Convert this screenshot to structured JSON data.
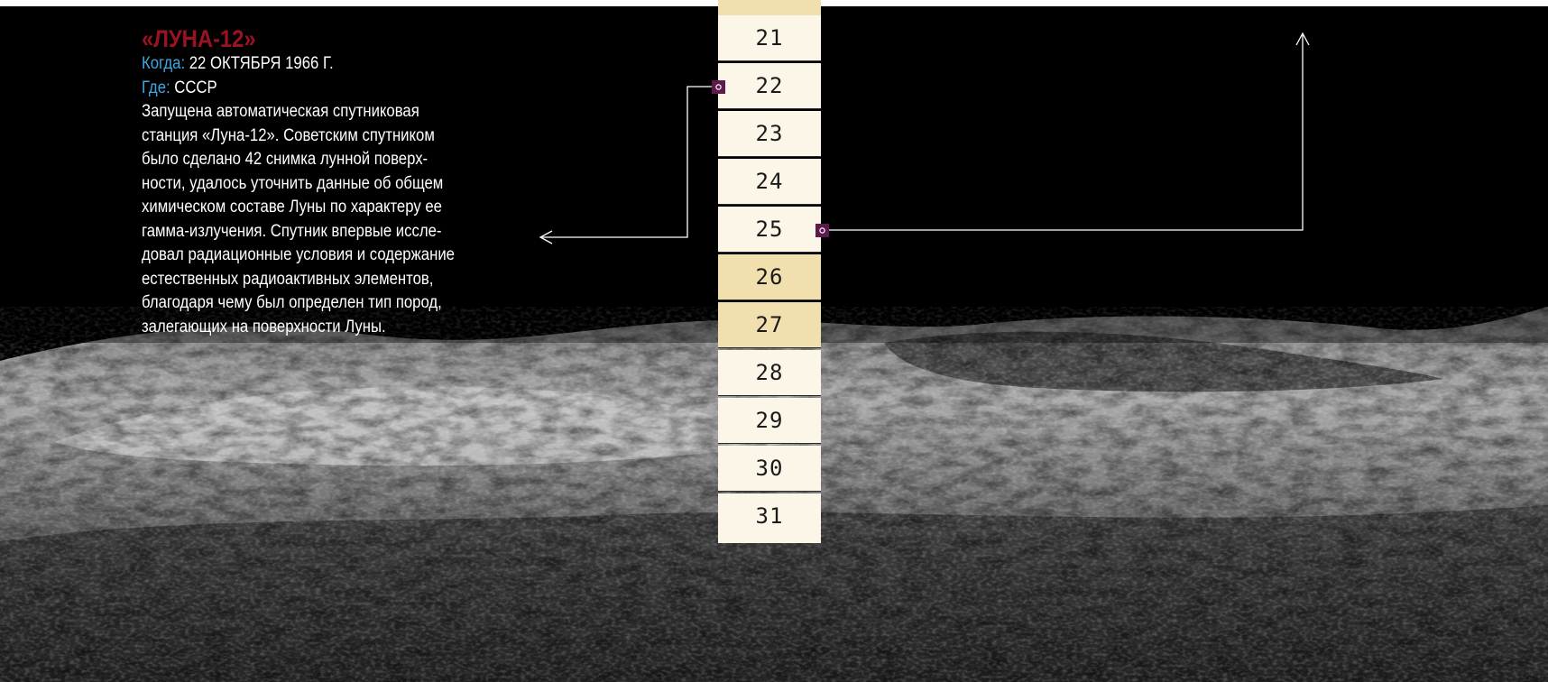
{
  "article": {
    "headline": "«ЛУНА-12»",
    "when_label": "Когда:",
    "when_value": "22 ОКТЯБРЯ 1966 Г.",
    "where_label": "Где:",
    "where_value": "СССР",
    "body_lines": [
      "Запущена автоматическая спутниковая",
      "станция «Луна-12». Советским спутником",
      "было сделано 42 снимка лунной поверх-",
      "ности, удалось уточнить данные об общем",
      "химическом составе Луны по характеру ее",
      "гамма-излучения. Спутник впервые иссле-",
      "довал радиационные условия и содержание",
      "естественных радиоактивных элементов,",
      "благодаря чему был определен тип пород,",
      "залегающих на поверхности Луны."
    ]
  },
  "calendar": {
    "days": [
      {
        "label": "21",
        "highlight": false
      },
      {
        "label": "22",
        "highlight": false
      },
      {
        "label": "23",
        "highlight": false
      },
      {
        "label": "24",
        "highlight": false
      },
      {
        "label": "25",
        "highlight": false
      },
      {
        "label": "26",
        "highlight": true
      },
      {
        "label": "27",
        "highlight": true
      },
      {
        "label": "28",
        "highlight": false
      },
      {
        "label": "29",
        "highlight": false
      },
      {
        "label": "30",
        "highlight": false
      },
      {
        "label": "31",
        "highlight": false
      }
    ]
  },
  "colors": {
    "headline": "#9b1322",
    "meta_label": "#3ea8e4",
    "calendar_cell": "#fcf6e8",
    "calendar_highlight": "#f1dfae",
    "marker": "#5e1a4b"
  }
}
